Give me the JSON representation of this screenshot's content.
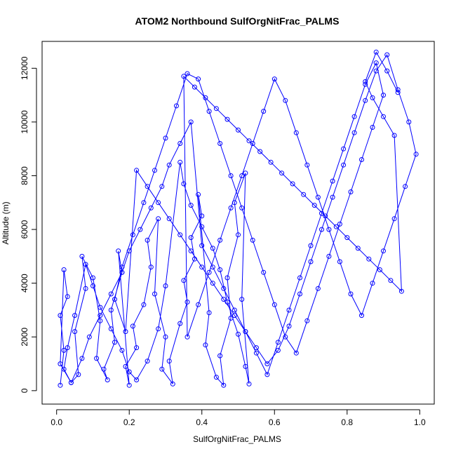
{
  "chart_data": {
    "type": "scatter",
    "title": "ATOM2 Northbound SulfOrgNitFrac_PALMS",
    "xlabel": "SulfOrgNitFrac_PALMS",
    "ylabel": "Altitude (m)",
    "xlim": [
      -0.04,
      1.04
    ],
    "ylim": [
      -500,
      13000
    ],
    "x_ticks": [
      0.0,
      0.2,
      0.4,
      0.6,
      0.8,
      1.0
    ],
    "x_tick_labels": [
      "0.0",
      "0.2",
      "0.4",
      "0.6",
      "0.8",
      "1.0"
    ],
    "y_ticks": [
      0,
      2000,
      4000,
      6000,
      8000,
      10000,
      12000
    ],
    "y_tick_labels": [
      "0",
      "2000",
      "4000",
      "6000",
      "8000",
      "10000",
      "12000"
    ],
    "grid": false,
    "legend": "none",
    "marker": "open-circle",
    "connect_points": true,
    "color": "#0000ff",
    "series": [
      {
        "x": [
          0.01,
          0.02,
          0.01,
          0.03,
          0.02,
          0.01,
          0.04,
          0.06,
          0.05,
          0.08,
          0.07,
          0.1,
          0.12,
          0.11,
          0.14,
          0.13,
          0.16,
          0.15,
          0.18,
          0.17,
          0.2,
          0.19,
          0.22,
          0.21,
          0.24,
          0.26,
          0.25,
          0.28,
          0.27,
          0.3,
          0.29,
          0.32,
          0.31,
          0.34,
          0.36,
          0.35,
          0.38,
          0.37,
          0.4,
          0.39,
          0.42,
          0.41,
          0.44,
          0.46,
          0.45,
          0.48,
          0.47,
          0.5,
          0.49,
          0.52,
          0.51,
          0.53,
          0.52,
          0.5,
          0.47,
          0.45,
          0.43,
          0.4,
          0.37,
          0.35,
          0.34,
          0.3,
          0.28,
          0.25,
          0.22,
          0.2,
          0.18,
          0.15,
          0.12,
          0.1,
          0.08,
          0.05,
          0.03,
          0.02,
          0.04,
          0.07,
          0.09,
          0.12,
          0.15,
          0.18,
          0.2,
          0.23,
          0.26,
          0.29,
          0.31,
          0.34,
          0.37,
          0.4,
          0.43,
          0.46,
          0.49,
          0.52,
          0.55,
          0.58,
          0.61,
          0.64,
          0.67,
          0.7,
          0.73,
          0.76,
          0.79,
          0.82,
          0.85,
          0.88,
          0.9,
          0.87,
          0.84,
          0.81,
          0.78,
          0.75,
          0.72,
          0.69,
          0.66,
          0.63,
          0.6,
          0.57,
          0.54,
          0.51,
          0.48,
          0.45,
          0.42,
          0.39,
          0.36,
          0.33,
          0.3,
          0.27,
          0.24,
          0.21,
          0.18,
          0.16,
          0.19,
          0.22,
          0.25,
          0.28,
          0.31,
          0.34,
          0.37,
          0.4,
          0.43,
          0.46,
          0.49,
          0.52,
          0.55,
          0.58,
          0.61,
          0.64,
          0.67,
          0.7,
          0.73,
          0.76,
          0.79,
          0.82,
          0.85,
          0.88,
          0.91,
          0.94,
          0.97,
          0.99,
          0.96,
          0.93,
          0.9,
          0.87,
          0.84,
          0.81,
          0.78,
          0.75,
          0.72,
          0.69,
          0.66,
          0.63,
          0.6,
          0.57,
          0.54,
          0.51,
          0.48,
          0.45,
          0.42,
          0.39,
          0.36,
          0.35,
          0.38,
          0.41,
          0.44,
          0.47,
          0.5,
          0.53,
          0.56,
          0.59,
          0.62,
          0.65,
          0.68,
          0.71,
          0.74,
          0.77,
          0.8,
          0.83,
          0.86,
          0.89,
          0.92,
          0.95,
          0.93,
          0.9,
          0.87,
          0.85,
          0.88,
          0.91,
          0.94
        ],
        "y": [
          200,
          1500,
          2800,
          3500,
          4500,
          1000,
          300,
          600,
          2200,
          3800,
          5000,
          4200,
          2600,
          1200,
          400,
          800,
          1800,
          3000,
          4400,
          5200,
          200,
          900,
          1600,
          2400,
          3200,
          4600,
          5600,
          6400,
          3600,
          2000,
          800,
          250,
          1100,
          2500,
          3300,
          4100,
          4900,
          5700,
          6500,
          7300,
          2900,
          1700,
          500,
          200,
          1300,
          2700,
          4200,
          5800,
          7000,
          8100,
          3400,
          250,
          900,
          2100,
          3300,
          4500,
          5300,
          6100,
          6900,
          7700,
          8500,
          3900,
          2300,
          1100,
          400,
          700,
          1500,
          2300,
          3100,
          3900,
          4700,
          2800,
          1600,
          800,
          300,
          1200,
          2000,
          2800,
          3600,
          4400,
          5200,
          6000,
          6800,
          7600,
          8400,
          9200,
          10000,
          5400,
          4600,
          3800,
          3000,
          2200,
          1400,
          600,
          1800,
          3000,
          4200,
          5400,
          6600,
          7800,
          9000,
          10200,
          11400,
          12200,
          11000,
          9800,
          8600,
          7400,
          6200,
          5000,
          3800,
          2600,
          1400,
          2000,
          3200,
          4400,
          5600,
          6800,
          8000,
          9200,
          10400,
          11600,
          11800,
          10600,
          9400,
          8200,
          7000,
          5800,
          4600,
          3400,
          2200,
          8200,
          7600,
          7000,
          6400,
          5800,
          5200,
          4600,
          4000,
          3400,
          2800,
          2200,
          1600,
          1000,
          1500,
          2400,
          3600,
          4800,
          6000,
          7200,
          8400,
          9600,
          10800,
          11900,
          12500,
          11200,
          10000,
          8800,
          7600,
          6400,
          5200,
          4000,
          2800,
          3600,
          4800,
          6000,
          7200,
          8400,
          9600,
          10800,
          11600,
          10400,
          9200,
          8000,
          6800,
          5600,
          4400,
          3200,
          2000,
          11700,
          11300,
          10900,
          10500,
          10100,
          9700,
          9300,
          8900,
          8500,
          8100,
          7700,
          7300,
          6900,
          6500,
          6100,
          5700,
          5300,
          4900,
          4500,
          4100,
          3700,
          9500,
          10200,
          10900,
          11500,
          12600,
          11900,
          11100
        ]
      }
    ]
  }
}
